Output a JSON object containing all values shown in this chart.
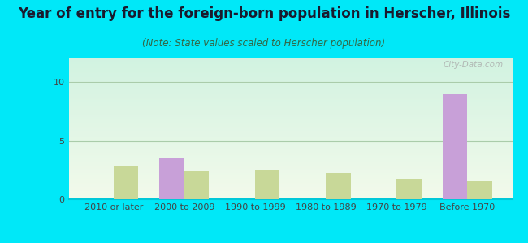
{
  "title": "Year of entry for the foreign-born population in Herscher, Illinois",
  "subtitle": "(Note: State values scaled to Herscher population)",
  "categories": [
    "2010 or later",
    "2000 to 2009",
    "1990 to 1999",
    "1980 to 1989",
    "1970 to 1979",
    "Before 1970"
  ],
  "herscher_values": [
    0,
    3.5,
    0,
    0,
    0,
    9.0
  ],
  "illinois_values": [
    2.8,
    2.4,
    2.5,
    2.2,
    1.7,
    1.5
  ],
  "herscher_color": "#c8a0d8",
  "illinois_color": "#c8d898",
  "background_outer": "#00e8f8",
  "ylim": [
    0,
    12
  ],
  "yticks": [
    0,
    5,
    10
  ],
  "bar_width": 0.35,
  "title_fontsize": 12,
  "subtitle_fontsize": 8.5,
  "tick_fontsize": 8,
  "legend_fontsize": 9
}
